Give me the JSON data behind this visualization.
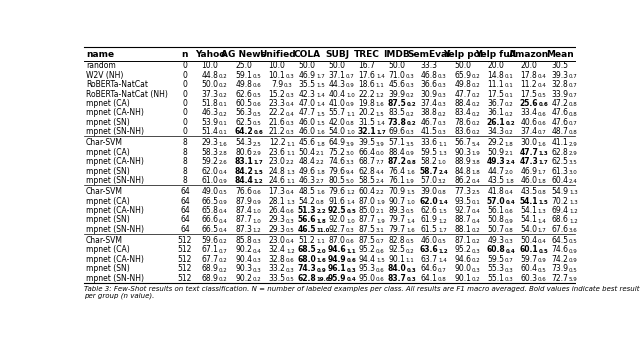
{
  "columns": [
    "name",
    "n",
    "Yahoo",
    "AG News",
    "Unified",
    "COLA",
    "SUBJ",
    "TREC",
    "IMDB",
    "SemEval",
    "Yelp pol",
    "Yelp full",
    "Amazon",
    "Mean"
  ],
  "rows": [
    [
      "random",
      "0",
      "10.0",
      "25.0",
      "10.0",
      "50.0",
      "50.0",
      "16.7",
      "50.0",
      "33.3",
      "50.0",
      "20.0",
      "20.0",
      "30.5"
    ],
    [
      "W2V (NH)",
      "0",
      [
        "44.8",
        "0.2"
      ],
      [
        "59.1",
        "0.5"
      ],
      [
        "10.1",
        "0.3"
      ],
      [
        "46.9",
        "1.7"
      ],
      [
        "37.1",
        "0.7"
      ],
      [
        "17.6",
        "1.4"
      ],
      [
        "71.0",
        "0.3"
      ],
      [
        "46.8",
        "0.3"
      ],
      [
        "65.9",
        "0.2"
      ],
      [
        "14.8",
        "0.1"
      ],
      [
        "17.8",
        "0.4"
      ],
      [
        "39.3",
        "0.7"
      ]
    ],
    [
      "RoBERTa-NatCat",
      "0",
      [
        "50.0",
        "0.2"
      ],
      [
        "49.8",
        "0.6"
      ],
      [
        "7.9",
        "0.3"
      ],
      [
        "35.5",
        "1.5"
      ],
      [
        "44.3",
        "0.9"
      ],
      [
        "18.6",
        "1.1"
      ],
      [
        "45.6",
        "0.3"
      ],
      [
        "36.6",
        "0.3"
      ],
      [
        "49.8",
        "0.2"
      ],
      [
        "11.1",
        "0.1"
      ],
      [
        "11.2",
        "0.4"
      ],
      [
        "32.8",
        "0.7"
      ]
    ],
    [
      "RoBERTa-NatCat (NH)",
      "0",
      [
        "37.3",
        "0.2"
      ],
      [
        "62.6",
        "0.5"
      ],
      [
        "15.2",
        "0.3"
      ],
      [
        "42.3",
        "1.4"
      ],
      [
        "40.4",
        "1.0"
      ],
      [
        "22.2",
        "1.2"
      ],
      [
        "39.9",
        "0.2"
      ],
      [
        "30.9",
        "0.3"
      ],
      [
        "47.7",
        "0.2"
      ],
      [
        "17.5",
        "0.1"
      ],
      [
        "17.5",
        "0.5"
      ],
      [
        "33.9",
        "0.7"
      ]
    ],
    [
      "mpnet (CA)",
      "0",
      [
        "51.8",
        "0.1"
      ],
      [
        "60.5",
        "0.6"
      ],
      [
        "23.3",
        "0.4"
      ],
      [
        "47.0",
        "1.4"
      ],
      [
        "41.0",
        "0.9"
      ],
      [
        "19.8",
        "1.6"
      ],
      [
        "87.5",
        "0.2"
      ],
      [
        "37.4",
        "0.3"
      ],
      [
        "88.4",
        "0.2"
      ],
      [
        "36.7",
        "0.2"
      ],
      [
        "25.6",
        "0.6"
      ],
      [
        "47.2",
        "0.8"
      ]
    ],
    [
      "mpnet (CA-NH)",
      "0",
      [
        "46.3",
        "0.2"
      ],
      [
        "56.3",
        "0.5"
      ],
      [
        "22.2",
        "0.4"
      ],
      [
        "47.7",
        "1.5"
      ],
      [
        "55.7",
        "1.1"
      ],
      [
        "20.2",
        "1.5"
      ],
      [
        "83.5",
        "0.2"
      ],
      [
        "38.8",
        "0.2"
      ],
      [
        "83.4",
        "0.2"
      ],
      [
        "36.1",
        "0.2"
      ],
      [
        "33.4",
        "0.6"
      ],
      [
        "47.6",
        "0.8"
      ]
    ],
    [
      "mpnet (SN)",
      "0",
      [
        "53.9",
        "0.1"
      ],
      [
        "62.5",
        "0.5"
      ],
      [
        "21.6",
        "0.3"
      ],
      [
        "46.0",
        "1.5"
      ],
      [
        "42.0",
        "0.8"
      ],
      [
        "31.5",
        "1.4"
      ],
      [
        "73.8",
        "0.2"
      ],
      [
        "46.7",
        "0.3"
      ],
      [
        "78.6",
        "0.2"
      ],
      [
        "26.1",
        "0.2"
      ],
      [
        "40.6",
        "0.6"
      ],
      [
        "47.6",
        "0.7"
      ]
    ],
    [
      "mpnet (SN-NH)",
      "0",
      [
        "51.4",
        "0.1"
      ],
      [
        "64.2",
        "0.6"
      ],
      [
        "21.2",
        "0.3"
      ],
      [
        "46.0",
        "1.6"
      ],
      [
        "54.0",
        "1.0"
      ],
      [
        "32.1",
        "1.7"
      ],
      [
        "69.6",
        "0.3"
      ],
      [
        "41.5",
        "0.3"
      ],
      [
        "83.6",
        "0.2"
      ],
      [
        "34.3",
        "0.2"
      ],
      [
        "37.4",
        "0.7"
      ],
      [
        "48.7",
        "0.8"
      ]
    ],
    [
      "Char-SVM",
      "8",
      [
        "29.3",
        "1.6"
      ],
      [
        "54.3",
        "2.5"
      ],
      [
        "12.2",
        "1.1"
      ],
      [
        "45.6",
        "1.8"
      ],
      [
        "64.9",
        "3.9"
      ],
      [
        "39.5",
        "3.9"
      ],
      [
        "57.1",
        "3.5"
      ],
      [
        "33.6",
        "1.1"
      ],
      [
        "56.7",
        "5.4"
      ],
      [
        "29.2",
        "1.8"
      ],
      [
        "30.0",
        "1.6"
      ],
      [
        "41.1",
        "2.9"
      ]
    ],
    [
      "mpnet (CA)",
      "8",
      [
        "58.3",
        "2.8"
      ],
      [
        "80.6",
        "2.9"
      ],
      [
        "23.6",
        "1.1"
      ],
      [
        "50.4",
        "2.1"
      ],
      [
        "75.2",
        "3.0"
      ],
      [
        "66.4",
        "0.0"
      ],
      [
        "88.4",
        "0.9"
      ],
      [
        "59.5",
        "1.3"
      ],
      [
        "90.3",
        "1.9"
      ],
      [
        "50.9",
        "2.1"
      ],
      [
        "47.7",
        "1.3"
      ],
      [
        "62.8",
        "2.9"
      ]
    ],
    [
      "mpnet (CA-NH)",
      "8",
      [
        "59.2",
        "2.6"
      ],
      [
        "83.1",
        "1.7"
      ],
      [
        "23.0",
        "2.2"
      ],
      [
        "48.4",
        "2.2"
      ],
      [
        "74.6",
        "3.3"
      ],
      [
        "68.7",
        "7.7"
      ],
      [
        "87.2",
        "0.8"
      ],
      [
        "58.2",
        "1.0"
      ],
      [
        "88.9",
        "3.8"
      ],
      [
        "49.3",
        "2.4"
      ],
      [
        "47.3",
        "1.7"
      ],
      [
        "62.5",
        "3.5"
      ]
    ],
    [
      "mpnet (SN)",
      "8",
      [
        "62.0",
        "0.4"
      ],
      [
        "84.2",
        "1.5"
      ],
      [
        "24.8",
        "1.3"
      ],
      [
        "49.6",
        "1.8"
      ],
      [
        "79.6",
        "9.4"
      ],
      [
        "62.8",
        "4.4"
      ],
      [
        "76.4",
        "1.6"
      ],
      [
        "58.7",
        "2.4"
      ],
      [
        "84.8",
        "1.8"
      ],
      [
        "44.7",
        "2.0"
      ],
      [
        "46.9",
        "1.7"
      ],
      [
        "61.3",
        "3.0"
      ]
    ],
    [
      "mpnet (SN-NH)",
      "8",
      [
        "61.0",
        "0.9"
      ],
      [
        "84.4",
        "1.2"
      ],
      [
        "24.6",
        "1.1"
      ],
      [
        "46.3",
        "2.7"
      ],
      [
        "80.5",
        "5.0"
      ],
      [
        "58.5",
        "2.4"
      ],
      [
        "76.1",
        "1.9"
      ],
      [
        "57.0",
        "3.2"
      ],
      [
        "86.2",
        "0.4"
      ],
      [
        "43.5",
        "1.8"
      ],
      [
        "46.0",
        "1.8"
      ],
      [
        "60.4",
        "2.4"
      ]
    ],
    [
      "Char-SVM",
      "64",
      [
        "49.0",
        "0.5"
      ],
      [
        "76.6",
        "0.6"
      ],
      [
        "17.3",
        "0.4"
      ],
      [
        "48.5",
        "1.6"
      ],
      [
        "79.6",
        "1.2"
      ],
      [
        "60.4",
        "2.2"
      ],
      [
        "70.9",
        "1.5"
      ],
      [
        "39.0",
        "0.8"
      ],
      [
        "77.3",
        "2.5"
      ],
      [
        "41.8",
        "0.4"
      ],
      [
        "43.5",
        "0.8"
      ],
      [
        "54.9",
        "1.3"
      ]
    ],
    [
      "mpnet (CA)",
      "64",
      [
        "66.5",
        "0.9"
      ],
      [
        "87.9",
        "0.9"
      ],
      [
        "28.1",
        "1.3"
      ],
      [
        "54.2",
        "0.8"
      ],
      [
        "91.6",
        "1.4"
      ],
      [
        "87.0",
        "1.9"
      ],
      [
        "90.7",
        "1.0"
      ],
      [
        "62.0",
        "1.4"
      ],
      [
        "93.5",
        "0.1"
      ],
      [
        "57.0",
        "0.4"
      ],
      [
        "54.1",
        "1.5"
      ],
      [
        "70.2",
        "1.3"
      ]
    ],
    [
      "mpnet (CA-NH)",
      "64",
      [
        "65.8",
        "0.4"
      ],
      [
        "87.4",
        "1.0"
      ],
      [
        "26.4",
        "0.6"
      ],
      [
        "51.3",
        "2.2"
      ],
      [
        "92.5",
        "0.5"
      ],
      [
        "85.0",
        "2.1"
      ],
      [
        "89.3",
        "0.5"
      ],
      [
        "62.6",
        "1.5"
      ],
      [
        "92.7",
        "0.4"
      ],
      [
        "56.1",
        "0.6"
      ],
      [
        "54.1",
        "1.3"
      ],
      [
        "69.4",
        "1.2"
      ]
    ],
    [
      "mpnet (SN)",
      "64",
      [
        "66.6",
        "0.4"
      ],
      [
        "87.7",
        "1.0"
      ],
      [
        "29.3",
        "0.3"
      ],
      [
        "56.6",
        "1.8"
      ],
      [
        "92.0",
        "1.0"
      ],
      [
        "87.7",
        "1.9"
      ],
      [
        "79.7",
        "1.4"
      ],
      [
        "61.9",
        "1.2"
      ],
      [
        "88.7",
        "0.4"
      ],
      [
        "50.8",
        "0.9"
      ],
      [
        "54.1",
        "1.4"
      ],
      [
        "68.6",
        "1.2"
      ]
    ],
    [
      "mpnet (SN-NH)",
      "64",
      [
        "66.5",
        "0.4"
      ],
      [
        "87.3",
        "1.2"
      ],
      [
        "29.3",
        "0.5"
      ],
      [
        "46.5",
        "11.0"
      ],
      [
        "92.7",
        "0.3"
      ],
      [
        "87.5",
        "3.1"
      ],
      [
        "79.7",
        "1.6"
      ],
      [
        "61.5",
        "1.7"
      ],
      [
        "88.1",
        "0.2"
      ],
      [
        "50.7",
        "0.8"
      ],
      [
        "54.0",
        "1.7"
      ],
      [
        "67.6",
        "3.6"
      ]
    ],
    [
      "Char-SVM",
      "512",
      [
        "59.6",
        "0.2"
      ],
      [
        "85.8",
        "0.3"
      ],
      [
        "23.0",
        "0.4"
      ],
      [
        "51.2",
        "1.1"
      ],
      [
        "87.0",
        "0.6"
      ],
      [
        "87.5",
        "0.7"
      ],
      [
        "82.8",
        "0.5"
      ],
      [
        "46.0",
        "0.5"
      ],
      [
        "87.1",
        "0.2"
      ],
      [
        "49.3",
        "0.3"
      ],
      [
        "50.4",
        "0.4"
      ],
      [
        "64.5",
        "0.5"
      ]
    ],
    [
      "mpnet (CA)",
      "512",
      [
        "67.1",
        "0.7"
      ],
      [
        "90.2",
        "0.4"
      ],
      [
        "32.4",
        "1.2"
      ],
      [
        "68.5",
        "2.0"
      ],
      [
        "94.6",
        "1.1"
      ],
      [
        "95.2",
        "0.6"
      ],
      [
        "92.5",
        "0.2"
      ],
      [
        "63.6",
        "1.2"
      ],
      [
        "95.2",
        "0.3"
      ],
      [
        "60.8",
        "0.4"
      ],
      [
        "60.1",
        "0.5"
      ],
      [
        "74.6",
        "0.9"
      ]
    ],
    [
      "mpnet (CA-NH)",
      "512",
      [
        "67.7",
        "0.2"
      ],
      [
        "90.4",
        "0.3"
      ],
      [
        "32.8",
        "0.6"
      ],
      [
        "68.0",
        "1.6"
      ],
      [
        "94.9",
        "0.6"
      ],
      [
        "94.4",
        "1.5"
      ],
      [
        "90.1",
        "1.1"
      ],
      [
        "63.7",
        "1.4"
      ],
      [
        "94.6",
        "0.2"
      ],
      [
        "59.5",
        "0.7"
      ],
      [
        "59.7",
        "0.9"
      ],
      [
        "74.2",
        "0.9"
      ]
    ],
    [
      "mpnet (SN)",
      "512",
      [
        "68.9",
        "0.2"
      ],
      [
        "90.3",
        "0.3"
      ],
      [
        "33.2",
        "0.3"
      ],
      [
        "74.3",
        "0.9"
      ],
      [
        "96.1",
        "0.3"
      ],
      [
        "95.3",
        "0.6"
      ],
      [
        "84.0",
        "0.3"
      ],
      [
        "64.6",
        "0.7"
      ],
      [
        "90.0",
        "0.3"
      ],
      [
        "55.3",
        "0.3"
      ],
      [
        "60.4",
        "0.5"
      ],
      [
        "73.9",
        "0.5"
      ]
    ],
    [
      "mpnet (SN-NH)",
      "512",
      [
        "68.9",
        "0.2"
      ],
      [
        "90.2",
        "0.2"
      ],
      [
        "33.5",
        "0.5"
      ],
      [
        "62.8",
        "19.6"
      ],
      [
        "95.9",
        "0.4"
      ],
      [
        "95.0",
        "0.6"
      ],
      [
        "83.7",
        "0.3"
      ],
      [
        "64.1",
        "0.8"
      ],
      [
        "90.1",
        "0.2"
      ],
      [
        "55.1",
        "0.3"
      ],
      [
        "60.3",
        "0.6"
      ],
      [
        "72.7",
        "5.9"
      ]
    ]
  ],
  "separators_before": [
    8,
    13,
    18
  ],
  "bold_cells": {
    "4_8": true,
    "4_12": true,
    "6_8": true,
    "6_11": true,
    "7_3": true,
    "7_7": true,
    "9_12": true,
    "10_3": true,
    "10_8": true,
    "10_11": true,
    "10_12": true,
    "11_3": true,
    "11_9": true,
    "12_3": true,
    "14_12": true,
    "14_9": true,
    "14_11": true,
    "15_5": true,
    "15_6": true,
    "16_5": true,
    "17_5": true,
    "19_5": true,
    "19_6": true,
    "19_9": true,
    "19_11": true,
    "19_12": true,
    "20_5": true,
    "20_6": true,
    "21_5": true,
    "21_6": true,
    "21_8": true,
    "22_5": true,
    "22_6": true,
    "22_8": true
  },
  "footer": "Table 3: Few-Shot results on text classification. N = number of labeled examples per class. All results are F1 macro averaged. Bold values indicate best result per group (n value).",
  "col_widths_rel": [
    2.2,
    0.45,
    0.75,
    0.88,
    0.72,
    0.72,
    0.72,
    0.72,
    0.72,
    0.82,
    0.8,
    0.8,
    0.78,
    0.72
  ],
  "header_fontsize": 6.5,
  "cell_fontsize": 5.5,
  "sub_fontsize": 4.0,
  "footer_fontsize": 5.0
}
